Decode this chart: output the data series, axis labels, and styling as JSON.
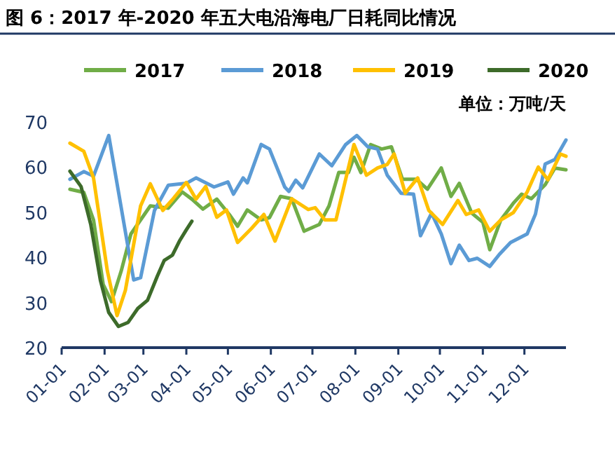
{
  "chart_data": {
    "type": "line",
    "title": "图 6：2017 年-2020 年五大电沿海电厂日耗同比情况",
    "annotations": [
      "单位：万吨/天"
    ],
    "legend": "top",
    "xlim": [
      "--01-01",
      "--12-31"
    ],
    "xticks": [
      {
        "value": "--01-01",
        "label": "01-01"
      },
      {
        "value": "--02-01",
        "label": "02-01"
      },
      {
        "value": "--03-01",
        "label": "03-01"
      },
      {
        "value": "--04-01",
        "label": "04-01"
      },
      {
        "value": "--05-01",
        "label": "05-01"
      },
      {
        "value": "--06-01",
        "label": "06-01"
      },
      {
        "value": "--07-01",
        "label": "07-01"
      },
      {
        "value": "--08-01",
        "label": "08-01"
      },
      {
        "value": "--09-01",
        "label": "09-01"
      },
      {
        "value": "--10-01",
        "label": "10-01"
      },
      {
        "value": "--11-01",
        "label": "11-01"
      },
      {
        "value": "--12-01",
        "label": "12-01"
      }
    ],
    "ylim": [
      20,
      70
    ],
    "yticks": [
      20,
      30,
      40,
      50,
      60,
      70
    ],
    "series": [
      {
        "name": "2017",
        "color": "#70ad47",
        "x": [
          "--01-07",
          "--01-17",
          "--01-24",
          "--01-31",
          "--02-06",
          "--02-13",
          "--02-20",
          "--02-27",
          "--03-06",
          "--03-19",
          "--03-29",
          "--04-05",
          "--04-13",
          "--04-23",
          "--05-02",
          "--05-08",
          "--05-15",
          "--05-25",
          "--05-31",
          "--06-08",
          "--06-16",
          "--06-25",
          "--07-06",
          "--07-13",
          "--07-20",
          "--07-27",
          "--07-31",
          "--08-05",
          "--08-12",
          "--08-20",
          "--08-27",
          "--09-04",
          "--09-14",
          "--09-22",
          "--10-02",
          "--10-09",
          "--10-15",
          "--10-24",
          "--11-01",
          "--11-06",
          "--11-14",
          "--11-23",
          "--11-29",
          "--12-06",
          "--12-16",
          "--12-23",
          "--12-31"
        ],
        "values": [
          55.1,
          54.4,
          48.3,
          34,
          30.2,
          37,
          45.2,
          48.3,
          51.4,
          50.9,
          54.5,
          52.9,
          50.7,
          52.9,
          49.5,
          46.9,
          50.5,
          48.3,
          48.8,
          53.5,
          53,
          45.8,
          47.3,
          51.4,
          58.8,
          58.8,
          62.2,
          58.8,
          65,
          64,
          64.5,
          57.3,
          57.3,
          55.1,
          59.8,
          53.5,
          56.4,
          49.8,
          47.8,
          41.7,
          48.3,
          52,
          54,
          53,
          56.1,
          59.8,
          59.4
        ]
      },
      {
        "name": "2018",
        "color": "#5b9bd5",
        "x": [
          "--01-07",
          "--01-17",
          "--01-24",
          "--02-04",
          "--02-22",
          "--02-27",
          "--03-09",
          "--03-19",
          "--04-01",
          "--04-08",
          "--04-21",
          "--05-01",
          "--05-05",
          "--05-12",
          "--05-15",
          "--05-25",
          "--05-31",
          "--06-11",
          "--06-14",
          "--06-19",
          "--06-24",
          "--07-06",
          "--07-15",
          "--07-25",
          "--08-02",
          "--08-10",
          "--08-17",
          "--08-24",
          "--09-03",
          "--09-12",
          "--09-17",
          "--09-25",
          "--10-02",
          "--10-09",
          "--10-15",
          "--10-22",
          "--10-28",
          "--11-06",
          "--11-13",
          "--11-21",
          "--12-03",
          "--12-09",
          "--12-16",
          "--12-23",
          "--12-31"
        ],
        "values": [
          57.3,
          59,
          58,
          67,
          35,
          35.5,
          50.4,
          56,
          56.4,
          57.6,
          55.6,
          56.7,
          54,
          57.6,
          56.5,
          65,
          64,
          55.6,
          54.6,
          57.1,
          55.4,
          62.9,
          60.3,
          65,
          67,
          64.5,
          64,
          58.2,
          54.2,
          54,
          44.8,
          49.8,
          45.2,
          38.6,
          42.7,
          39.3,
          39.8,
          38,
          40.7,
          43.3,
          45.2,
          49.6,
          60.7,
          61.7,
          66
        ]
      },
      {
        "name": "2019",
        "color": "#ffc000",
        "x": [
          "--01-07",
          "--01-17",
          "--01-24",
          "--02-03",
          "--02-10",
          "--02-16",
          "--02-27",
          "--03-06",
          "--03-15",
          "--03-22",
          "--04-01",
          "--04-08",
          "--04-15",
          "--04-23",
          "--04-30",
          "--05-08",
          "--05-18",
          "--05-27",
          "--06-04",
          "--06-16",
          "--06-28",
          "--07-03",
          "--07-10",
          "--07-18",
          "--07-31",
          "--08-09",
          "--08-17",
          "--08-24",
          "--08-29",
          "--09-06",
          "--09-15",
          "--09-23",
          "--10-03",
          "--10-14",
          "--10-20",
          "--10-29",
          "--11-06",
          "--11-14",
          "--11-23",
          "--12-03",
          "--12-11",
          "--12-18",
          "--12-27",
          "--12-31"
        ],
        "values": [
          65.3,
          63.5,
          57.6,
          37,
          27.1,
          32.7,
          51.4,
          56.3,
          50.4,
          52.8,
          56.6,
          52.9,
          55.7,
          48.9,
          50.5,
          43.3,
          46.4,
          49.5,
          43.6,
          53,
          50.6,
          51,
          48.3,
          48.3,
          65,
          58.2,
          59.8,
          60.6,
          62.9,
          54.2,
          57.6,
          50.4,
          47.3,
          52.6,
          49.5,
          50.5,
          45.8,
          48.3,
          49.9,
          54.5,
          60,
          57.2,
          62.9,
          62.4
        ]
      },
      {
        "name": "2020",
        "color": "#3d6b2a",
        "x": [
          "--01-07",
          "--01-15",
          "--01-22",
          "--01-29",
          "--02-04",
          "--02-11",
          "--02-18",
          "--02-25",
          "--03-04",
          "--03-11",
          "--03-16",
          "--03-22",
          "--03-27",
          "--04-01",
          "--04-05"
        ],
        "values": [
          59.1,
          55.7,
          47.3,
          34.9,
          27.8,
          24.7,
          25.6,
          28.7,
          30.5,
          35.8,
          39.3,
          40.5,
          43.6,
          46.1,
          48
        ]
      }
    ]
  }
}
